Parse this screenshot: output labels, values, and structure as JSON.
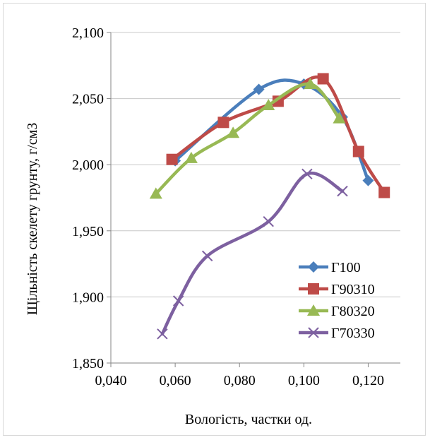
{
  "chart_data": {
    "type": "line",
    "xlabel": "Вологість, частки од.",
    "ylabel": "Щільність скелету грунту, г/см3",
    "xlim": [
      0.04,
      0.13
    ],
    "ylim": [
      1.85,
      2.1
    ],
    "x_ticks": [
      0.04,
      0.06,
      0.08,
      0.1,
      0.12
    ],
    "x_tick_labels": [
      "0,040",
      "0,060",
      "0,080",
      "0,100",
      "0,120"
    ],
    "y_ticks": [
      1.85,
      1.9,
      1.95,
      2.0,
      2.05,
      2.1
    ],
    "y_tick_labels": [
      "1,850",
      "1,900",
      "1,950",
      "2,000",
      "2,050",
      "2,100"
    ],
    "grid": "horizontal",
    "legend_position": "bottom-right",
    "series": [
      {
        "name": "Г100",
        "color": "#4a7ebb",
        "marker": "diamond",
        "points": [
          [
            0.06,
            2.003
          ],
          [
            0.086,
            2.057
          ],
          [
            0.1,
            2.061
          ],
          [
            0.112,
            2.036
          ],
          [
            0.12,
            1.988
          ]
        ]
      },
      {
        "name": "Г90310",
        "color": "#be4b48",
        "marker": "square",
        "points": [
          [
            0.059,
            2.004
          ],
          [
            0.075,
            2.032
          ],
          [
            0.092,
            2.048
          ],
          [
            0.106,
            2.065
          ],
          [
            0.117,
            2.01
          ],
          [
            0.125,
            1.979
          ]
        ]
      },
      {
        "name": "Г80320",
        "color": "#98b954",
        "marker": "triangle",
        "points": [
          [
            0.054,
            1.978
          ],
          [
            0.065,
            2.005
          ],
          [
            0.078,
            2.024
          ],
          [
            0.089,
            2.045
          ],
          [
            0.102,
            2.061
          ],
          [
            0.111,
            2.035
          ]
        ]
      },
      {
        "name": "Г70330",
        "color": "#7d60a0",
        "marker": "x",
        "points": [
          [
            0.056,
            1.872
          ],
          [
            0.061,
            1.897
          ],
          [
            0.07,
            1.931
          ],
          [
            0.089,
            1.957
          ],
          [
            0.101,
            1.993
          ],
          [
            0.112,
            1.98
          ]
        ]
      }
    ]
  }
}
